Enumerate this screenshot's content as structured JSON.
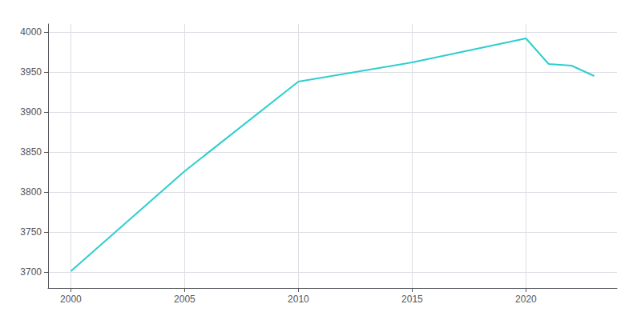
{
  "chart_data": {
    "type": "line",
    "x": [
      2000,
      2005,
      2010,
      2015,
      2020,
      2021,
      2022,
      2023
    ],
    "values": [
      3701,
      3826,
      3938,
      3962,
      3992,
      3960,
      3958,
      3945
    ],
    "color": "#2ecece",
    "xlim": [
      1999,
      2024
    ],
    "ylim": [
      3680,
      4010
    ],
    "xticks": [
      2000,
      2005,
      2010,
      2015,
      2020
    ],
    "yticks": [
      3700,
      3750,
      3800,
      3850,
      3900,
      3950,
      4000
    ],
    "grid": true
  }
}
